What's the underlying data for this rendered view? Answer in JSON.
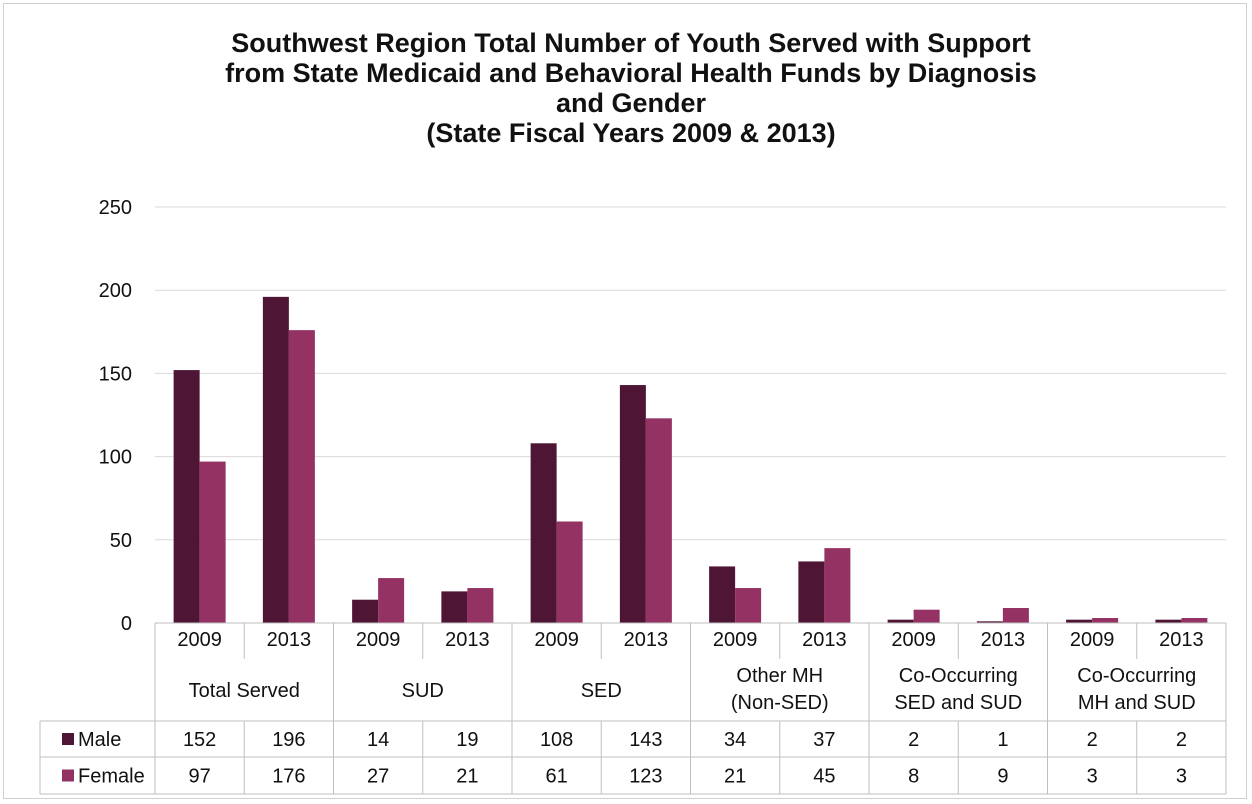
{
  "chart_data": {
    "type": "bar",
    "title_lines": [
      "Southwest Region Total Number of Youth Served with Support",
      "from State Medicaid and Behavioral Health Funds by Diagnosis",
      "and Gender",
      "(State Fiscal Years 2009 & 2013)"
    ],
    "groups": [
      {
        "label": [
          "Total Served"
        ],
        "years": [
          "2009",
          "2013"
        ]
      },
      {
        "label": [
          "SUD"
        ],
        "years": [
          "2009",
          "2013"
        ]
      },
      {
        "label": [
          "SED"
        ],
        "years": [
          "2009",
          "2013"
        ]
      },
      {
        "label": [
          "Other MH",
          "(Non-SED)"
        ],
        "years": [
          "2009",
          "2013"
        ]
      },
      {
        "label": [
          "Co-Occurring",
          "SED and SUD"
        ],
        "years": [
          "2009",
          "2013"
        ]
      },
      {
        "label": [
          "Co-Occurring",
          "MH and SUD"
        ],
        "years": [
          "2009",
          "2013"
        ]
      }
    ],
    "series": [
      {
        "name": "Male",
        "color": "#4f1535",
        "values": [
          152,
          196,
          14,
          19,
          108,
          143,
          34,
          37,
          2,
          1,
          2,
          2
        ]
      },
      {
        "name": "Female",
        "color": "#933263",
        "values": [
          97,
          176,
          27,
          21,
          61,
          123,
          21,
          45,
          8,
          9,
          3,
          3
        ]
      }
    ],
    "ylim": [
      0,
      250
    ],
    "yticks": [
      0,
      50,
      100,
      150,
      200,
      250
    ],
    "grid": true,
    "legend": "data-table"
  }
}
